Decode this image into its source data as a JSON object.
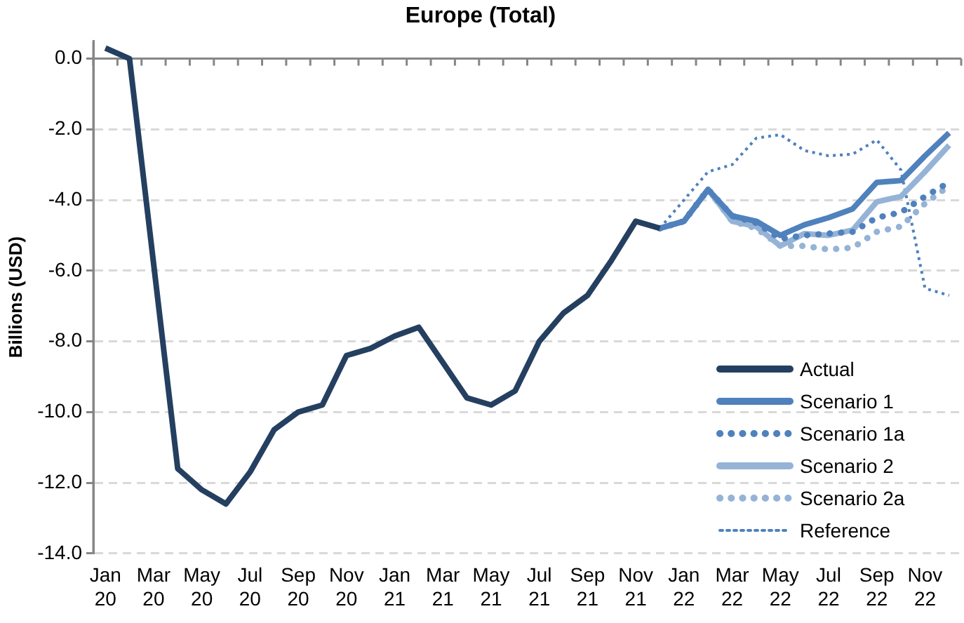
{
  "chart_data": {
    "type": "line",
    "title": "Europe (Total)",
    "ylabel": "Billions (USD)",
    "categories": [
      "Jan 20",
      null,
      "Mar 20",
      null,
      "May 20",
      null,
      "Jul 20",
      null,
      "Sep 20",
      null,
      "Nov 20",
      null,
      "Jan 21",
      null,
      "Mar 21",
      null,
      "May 21",
      null,
      "Jul 21",
      null,
      "Sep 21",
      null,
      "Nov 21",
      null,
      "Jan 22",
      null,
      "Mar 22",
      null,
      "May 22",
      null,
      "Jul 22",
      null,
      "Sep 22",
      null,
      "Nov 22",
      null
    ],
    "series": [
      {
        "name": "Actual",
        "color": "#243f60",
        "line_style": "solid",
        "values": [
          0.3,
          0.0,
          -5.8,
          -11.6,
          -12.2,
          -12.6,
          -11.7,
          -10.5,
          -10.0,
          -9.8,
          -8.4,
          -8.2,
          -7.85,
          -7.6,
          -8.6,
          -9.6,
          -9.8,
          -9.4,
          -8.0,
          -7.2,
          -6.7,
          -5.7,
          -4.6,
          -4.8,
          null,
          null,
          null,
          null,
          null,
          null,
          null,
          null,
          null,
          null,
          null,
          null
        ]
      },
      {
        "name": "Scenario 1",
        "color": "#4f81bd",
        "line_style": "solid",
        "values": [
          null,
          null,
          null,
          null,
          null,
          null,
          null,
          null,
          null,
          null,
          null,
          null,
          null,
          null,
          null,
          null,
          null,
          null,
          null,
          null,
          null,
          null,
          null,
          -4.8,
          -4.6,
          -3.7,
          -4.45,
          -4.6,
          -5.0,
          -4.7,
          -4.5,
          -4.25,
          -3.5,
          -3.45,
          -2.75,
          -2.1
        ]
      },
      {
        "name": "Scenario 1a",
        "color": "#4f81bd",
        "line_style": "dotted",
        "values": [
          null,
          null,
          null,
          null,
          null,
          null,
          null,
          null,
          null,
          null,
          null,
          null,
          null,
          null,
          null,
          null,
          null,
          null,
          null,
          null,
          null,
          null,
          null,
          -4.8,
          -4.6,
          -3.7,
          -4.45,
          -4.65,
          -5.1,
          -5.0,
          -4.95,
          -4.9,
          -4.5,
          -4.35,
          -3.9,
          -3.5
        ]
      },
      {
        "name": "Scenario 2",
        "color": "#95b3d7",
        "line_style": "solid",
        "values": [
          null,
          null,
          null,
          null,
          null,
          null,
          null,
          null,
          null,
          null,
          null,
          null,
          null,
          null,
          null,
          null,
          null,
          null,
          null,
          null,
          null,
          null,
          null,
          -4.8,
          -4.6,
          -3.7,
          -4.6,
          -4.75,
          -5.3,
          -4.95,
          -5.0,
          -4.85,
          -4.05,
          -3.9,
          -3.2,
          -2.45
        ]
      },
      {
        "name": "Scenario 2a",
        "color": "#95b3d7",
        "line_style": "dotted",
        "values": [
          null,
          null,
          null,
          null,
          null,
          null,
          null,
          null,
          null,
          null,
          null,
          null,
          null,
          null,
          null,
          null,
          null,
          null,
          null,
          null,
          null,
          null,
          null,
          -4.8,
          -4.6,
          -3.7,
          -4.6,
          -4.8,
          -5.3,
          -5.3,
          -5.4,
          -5.35,
          -4.9,
          -4.75,
          -4.1,
          -3.6
        ]
      },
      {
        "name": "Reference",
        "color": "#4f81bd",
        "line_style": "dashed",
        "values": [
          null,
          null,
          null,
          null,
          null,
          null,
          null,
          null,
          null,
          null,
          null,
          null,
          null,
          null,
          null,
          null,
          null,
          null,
          null,
          null,
          null,
          null,
          null,
          -4.8,
          -4.0,
          -3.2,
          -3.0,
          -2.25,
          -2.15,
          -2.6,
          -2.75,
          -2.7,
          -2.3,
          -3.15,
          -6.5,
          -6.7
        ]
      }
    ],
    "ylim": [
      -14,
      0.5
    ],
    "yticks": [
      {
        "value": 0,
        "label": "0.0"
      },
      {
        "value": -2,
        "label": "-2.0"
      },
      {
        "value": -4,
        "label": "-4.0"
      },
      {
        "value": -6,
        "label": "-6.0"
      },
      {
        "value": -8,
        "label": "-8.0"
      },
      {
        "value": -10,
        "label": "-10.0"
      },
      {
        "value": -12,
        "label": "-12.0"
      },
      {
        "value": -14,
        "label": "-14.0"
      }
    ],
    "grid": "y",
    "legend": "bottom right",
    "marker": "none"
  }
}
